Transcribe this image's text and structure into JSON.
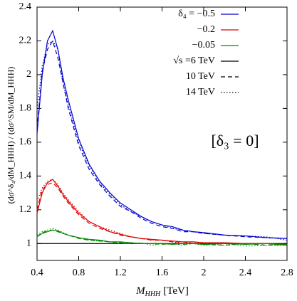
{
  "chart_data": {
    "type": "line",
    "xlabel": {
      "symbol": "M",
      "subscript": "HHH",
      "unit": "[TeV]"
    },
    "ylabel": "(dσ^δ₄/dM_HHH) / (dσ^SM/dM_HHH)",
    "annotation": "[δ₃ = 0]",
    "xlim": [
      0.4,
      2.8
    ],
    "xticks": [
      0.4,
      0.8,
      1.2,
      1.6,
      2,
      2.4,
      2.8
    ],
    "ylim": [
      0.9,
      2.4
    ],
    "yticks": [
      1,
      1.2,
      1.4,
      1.6,
      1.8,
      2,
      2.2,
      2.4
    ],
    "reference_line": 1,
    "x": [
      0.4,
      0.45,
      0.5,
      0.55,
      0.6,
      0.65,
      0.7,
      0.8,
      0.9,
      1.0,
      1.1,
      1.2,
      1.3,
      1.4,
      1.5,
      1.6,
      1.7,
      1.8,
      1.9,
      2.0,
      2.2,
      2.4,
      2.6,
      2.8
    ],
    "energies": [
      {
        "label": "√s =6 TeV",
        "dash": "solid"
      },
      {
        "label": "10 TeV",
        "dash": "dashed"
      },
      {
        "label": "14 TeV",
        "dash": "dotted"
      }
    ],
    "series": [
      {
        "name": "δ₄ = −0.5",
        "color": "#0000cc",
        "values": [
          [
            1.65,
            2.0,
            2.2,
            2.26,
            2.15,
            1.98,
            1.85,
            1.62,
            1.47,
            1.37,
            1.3,
            1.24,
            1.2,
            1.16,
            1.13,
            1.11,
            1.1,
            1.08,
            1.07,
            1.065,
            1.05,
            1.045,
            1.035,
            1.03
          ],
          [
            1.68,
            2.02,
            2.15,
            2.2,
            2.1,
            1.95,
            1.8,
            1.58,
            1.44,
            1.35,
            1.28,
            1.22,
            1.19,
            1.15,
            1.12,
            1.1,
            1.09,
            1.07,
            1.07,
            1.06,
            1.05,
            1.04,
            1.035,
            1.03
          ],
          [
            1.8,
            2.05,
            2.18,
            2.2,
            2.15,
            1.95,
            1.82,
            1.6,
            1.46,
            1.36,
            1.29,
            1.23,
            1.19,
            1.16,
            1.13,
            1.11,
            1.09,
            1.08,
            1.07,
            1.06,
            1.05,
            1.045,
            1.04,
            1.02
          ]
        ]
      },
      {
        "name": "−0.2",
        "color": "#dd0000",
        "values": [
          [
            1.18,
            1.3,
            1.36,
            1.38,
            1.34,
            1.29,
            1.25,
            1.18,
            1.13,
            1.1,
            1.07,
            1.055,
            1.04,
            1.03,
            1.025,
            1.02,
            1.015,
            1.01,
            1.01,
            1.005,
            1.005,
            1.0,
            1.0,
            0.995
          ],
          [
            1.2,
            1.32,
            1.35,
            1.36,
            1.33,
            1.28,
            1.24,
            1.17,
            1.12,
            1.09,
            1.07,
            1.05,
            1.04,
            1.03,
            1.02,
            1.02,
            1.01,
            1.01,
            1.0,
            1.0,
            1.0,
            1.0,
            0.99,
            0.995
          ],
          [
            1.25,
            1.33,
            1.37,
            1.38,
            1.35,
            1.3,
            1.26,
            1.19,
            1.13,
            1.1,
            1.08,
            1.06,
            1.04,
            1.03,
            1.02,
            1.02,
            1.01,
            1.0,
            1.01,
            1.0,
            0.99,
            1.0,
            1.0,
            0.99
          ]
        ]
      },
      {
        "name": "−0.05",
        "color": "#008800",
        "values": [
          [
            1.04,
            1.06,
            1.07,
            1.08,
            1.075,
            1.06,
            1.05,
            1.035,
            1.025,
            1.02,
            1.01,
            1.01,
            1.005,
            1.0,
            1.0,
            1.0,
            0.995,
            1.0,
            1.0,
            0.995,
            1.0,
            0.995,
            1.0,
            0.99
          ],
          [
            1.04,
            1.065,
            1.075,
            1.08,
            1.07,
            1.06,
            1.05,
            1.03,
            1.02,
            1.015,
            1.01,
            1.005,
            1.0,
            1.0,
            1.0,
            0.995,
            1.0,
            0.995,
            1.0,
            0.995,
            0.99,
            1.0,
            0.99,
            0.995
          ],
          [
            1.05,
            1.07,
            1.08,
            1.09,
            1.08,
            1.065,
            1.05,
            1.035,
            1.02,
            1.015,
            1.01,
            1.0,
            1.0,
            1.005,
            0.99,
            1.0,
            1.0,
            0.99,
            1.0,
            0.99,
            1.0,
            0.985,
            0.99,
            0.99
          ]
        ]
      }
    ]
  }
}
